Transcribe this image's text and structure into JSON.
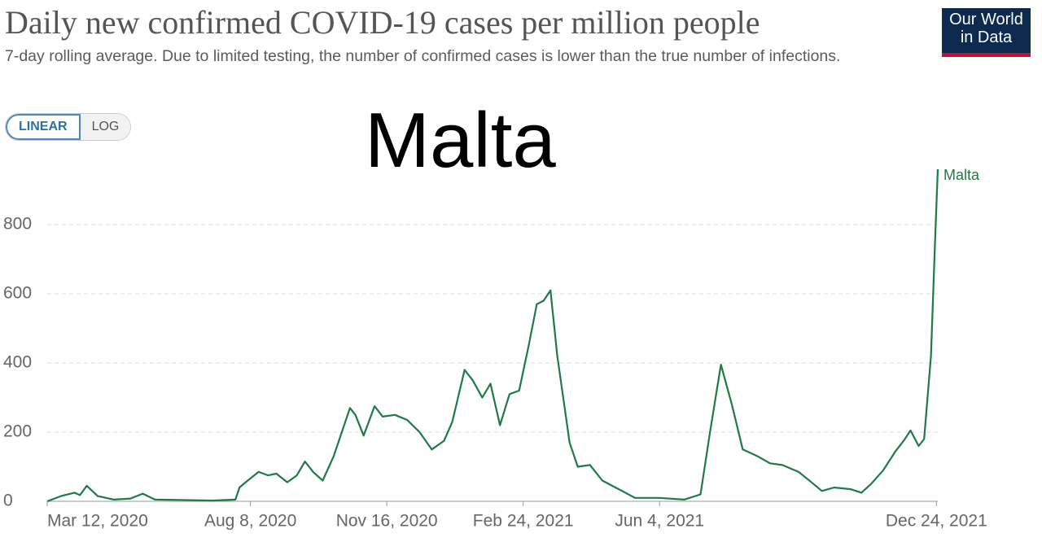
{
  "chart_data": {
    "type": "line",
    "title": "Daily new confirmed COVID-19 cases per million people",
    "subtitle": "7-day rolling average. Due to limited testing, the number of confirmed cases is lower than the true number of infections.",
    "annotation": "Malta",
    "logo": [
      "Our World",
      "in Data"
    ],
    "scale_options": [
      "LINEAR",
      "LOG"
    ],
    "series": [
      {
        "name": "Malta",
        "color": "#1f7a45",
        "x": [
          "2020-03-12",
          "2020-03-22",
          "2020-04-01",
          "2020-04-05",
          "2020-04-10",
          "2020-04-18",
          "2020-04-30",
          "2020-05-12",
          "2020-05-21",
          "2020-05-30",
          "2020-06-17",
          "2020-07-11",
          "2020-07-28",
          "2020-07-31",
          "2020-08-06",
          "2020-08-14",
          "2020-08-21",
          "2020-08-27",
          "2020-09-04",
          "2020-09-11",
          "2020-09-17",
          "2020-09-23",
          "2020-09-30",
          "2020-10-08",
          "2020-10-14",
          "2020-10-20",
          "2020-10-24",
          "2020-10-30",
          "2020-11-07",
          "2020-11-13",
          "2020-11-22",
          "2020-12-01",
          "2020-12-10",
          "2020-12-19",
          "2020-12-28",
          "2021-01-03",
          "2021-01-12",
          "2021-01-18",
          "2021-01-25",
          "2021-01-31",
          "2021-02-07",
          "2021-02-14",
          "2021-02-21",
          "2021-02-28",
          "2021-03-06",
          "2021-03-11",
          "2021-03-16",
          "2021-03-21",
          "2021-03-30",
          "2021-04-05",
          "2021-04-14",
          "2021-04-23",
          "2021-05-05",
          "2021-05-17",
          "2021-06-04",
          "2021-06-22",
          "2021-07-04",
          "2021-07-11",
          "2021-07-19",
          "2021-07-27",
          "2021-08-04",
          "2021-08-15",
          "2021-08-24",
          "2021-09-02",
          "2021-09-14",
          "2021-09-25",
          "2021-10-01",
          "2021-10-10",
          "2021-10-22",
          "2021-10-30",
          "2021-11-06",
          "2021-11-15",
          "2021-11-24",
          "2021-11-30",
          "2021-12-05",
          "2021-12-11",
          "2021-12-15",
          "2021-12-20",
          "2021-12-23",
          "2021-12-25"
        ],
        "values": [
          0,
          15,
          25,
          18,
          45,
          15,
          5,
          8,
          22,
          5,
          4,
          2,
          5,
          40,
          60,
          85,
          75,
          80,
          55,
          75,
          115,
          85,
          60,
          130,
          200,
          270,
          250,
          190,
          275,
          245,
          250,
          235,
          200,
          150,
          175,
          230,
          380,
          350,
          300,
          340,
          220,
          310,
          320,
          450,
          570,
          580,
          610,
          420,
          170,
          100,
          105,
          60,
          35,
          10,
          10,
          5,
          20,
          200,
          395,
          280,
          150,
          130,
          110,
          105,
          85,
          50,
          30,
          40,
          35,
          25,
          50,
          90,
          145,
          175,
          205,
          160,
          180,
          420,
          750,
          960
        ]
      }
    ],
    "xlim": [
      "2020-03-12",
      "2021-12-25"
    ],
    "xticks": [
      {
        "value": "2020-03-12",
        "label": "Mar 12, 2020"
      },
      {
        "value": "2020-08-08",
        "label": "Aug 8, 2020"
      },
      {
        "value": "2020-11-16",
        "label": "Nov 16, 2020"
      },
      {
        "value": "2021-02-24",
        "label": "Feb 24, 2021"
      },
      {
        "value": "2021-06-04",
        "label": "Jun 4, 2021"
      },
      {
        "value": "2021-12-24",
        "label": "Dec 24, 2021"
      }
    ],
    "ylim": [
      0,
      960
    ],
    "yticks": [
      0,
      200,
      400,
      600,
      800
    ],
    "grid": true
  }
}
